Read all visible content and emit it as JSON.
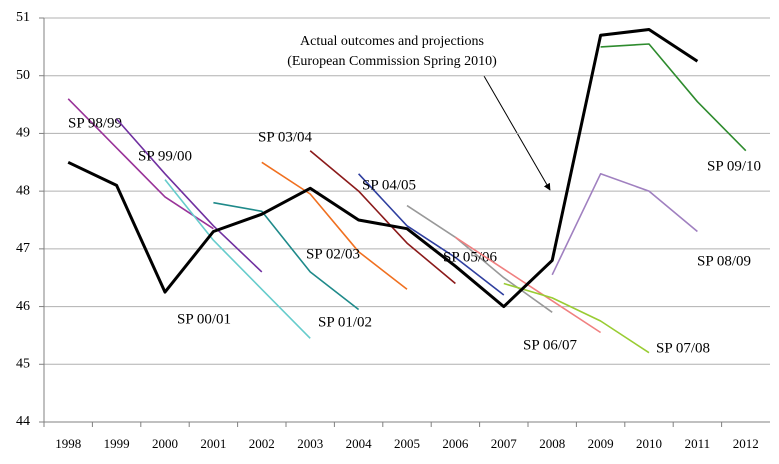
{
  "chart_data": {
    "type": "line",
    "annotation": [
      "Actual outcomes and projections",
      "(European Commission Spring 2010)"
    ],
    "categories": [
      "1998",
      "1999",
      "2000",
      "2001",
      "2002",
      "2003",
      "2004",
      "2005",
      "2006",
      "2007",
      "2008",
      "2009",
      "2010",
      "2011",
      "2012"
    ],
    "ylim": [
      44,
      51
    ],
    "yticks": [
      44,
      45,
      46,
      47,
      48,
      49,
      50,
      51
    ],
    "grid": true,
    "series": [
      {
        "color": "#000000",
        "values": [
          48.5,
          48.1,
          46.25,
          47.3,
          47.6,
          48.05,
          47.5,
          47.35,
          46.7,
          46.0,
          46.8,
          50.7,
          50.8,
          50.25,
          null
        ]
      },
      {
        "name": "SP 98/99",
        "color": "#993399",
        "values": [
          49.6,
          48.75,
          47.9,
          47.35,
          null,
          null,
          null,
          null,
          null,
          null,
          null,
          null,
          null,
          null,
          null
        ]
      },
      {
        "name": "SP 99/00",
        "color": "#7030a0",
        "values": [
          null,
          49.25,
          48.3,
          47.4,
          46.6,
          null,
          null,
          null,
          null,
          null,
          null,
          null,
          null,
          null,
          null
        ]
      },
      {
        "name": "SP 00/01",
        "color": "#66cccc",
        "values": [
          null,
          null,
          48.2,
          47.15,
          46.3,
          45.45,
          null,
          null,
          null,
          null,
          null,
          null,
          null,
          null,
          null
        ]
      },
      {
        "name": "SP 01/02",
        "color": "#1f8a8a",
        "values": [
          null,
          null,
          null,
          47.8,
          47.65,
          46.6,
          45.95,
          null,
          null,
          null,
          null,
          null,
          null,
          null,
          null
        ]
      },
      {
        "name": "SP 02/03",
        "color": "#f07020",
        "values": [
          null,
          null,
          null,
          null,
          48.5,
          47.95,
          46.95,
          46.3,
          null,
          null,
          null,
          null,
          null,
          null,
          null
        ]
      },
      {
        "name": "SP 03/04",
        "color": "#8b1a1a",
        "values": [
          null,
          null,
          null,
          null,
          null,
          48.7,
          48.0,
          47.1,
          46.4,
          null,
          null,
          null,
          null,
          null,
          null
        ]
      },
      {
        "name": "SP 04/05",
        "color": "#2f3f9f",
        "values": [
          null,
          null,
          null,
          null,
          null,
          null,
          48.3,
          47.4,
          46.85,
          46.2,
          null,
          null,
          null,
          null,
          null
        ]
      },
      {
        "name": "SP 05/06",
        "color": "#999999",
        "values": [
          null,
          null,
          null,
          null,
          null,
          null,
          null,
          47.75,
          47.2,
          46.5,
          45.9,
          null,
          null,
          null,
          null
        ]
      },
      {
        "name": "SP 06/07",
        "color": "#f08080",
        "values": [
          null,
          null,
          null,
          null,
          null,
          null,
          null,
          null,
          47.2,
          46.65,
          46.1,
          45.55,
          null,
          null,
          null
        ]
      },
      {
        "name": "SP 07/08",
        "color": "#99cc33",
        "values": [
          null,
          null,
          null,
          null,
          null,
          null,
          null,
          null,
          null,
          46.4,
          46.15,
          45.75,
          45.2,
          null,
          null
        ]
      },
      {
        "name": "SP 08/09",
        "color": "#a080c0",
        "values": [
          null,
          null,
          null,
          null,
          null,
          null,
          null,
          null,
          null,
          null,
          46.55,
          48.3,
          48.0,
          47.3,
          null
        ]
      },
      {
        "name": "SP 09/10",
        "color": "#2e8b2e",
        "values": [
          null,
          null,
          null,
          null,
          null,
          null,
          null,
          null,
          null,
          null,
          null,
          50.5,
          50.55,
          49.55,
          48.7
        ]
      }
    ]
  }
}
